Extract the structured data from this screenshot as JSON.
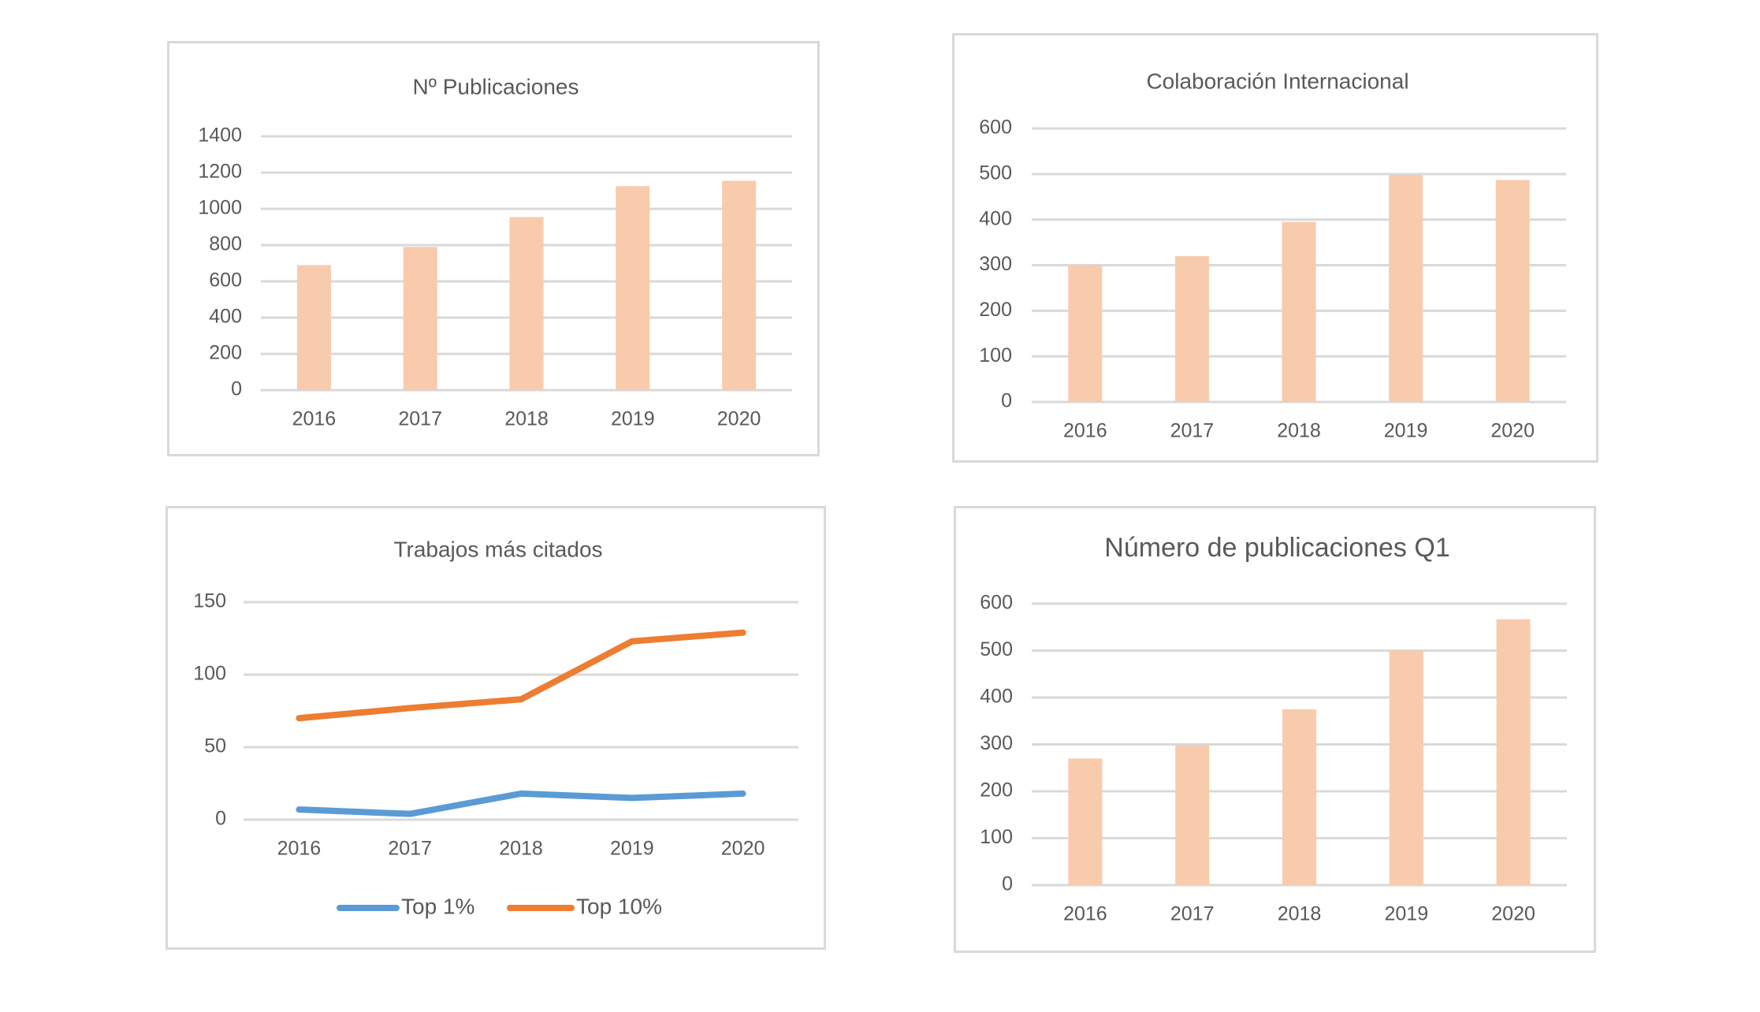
{
  "colors": {
    "bar": "#f8cbad",
    "grid": "#d9d9d9",
    "top1": "#5b9bd5",
    "top10": "#ed7d31",
    "text": "#595959"
  },
  "chart_data": [
    {
      "type": "bar",
      "title": "Nº Publicaciones",
      "categories": [
        "2016",
        "2017",
        "2018",
        "2019",
        "2020"
      ],
      "values": [
        690,
        790,
        955,
        1125,
        1155
      ],
      "ylim": [
        0,
        1400
      ],
      "yticks": [
        "0",
        "200",
        "400",
        "600",
        "800",
        "1000",
        "1200",
        "1400"
      ],
      "grid": true
    },
    {
      "type": "bar",
      "title": "Colaboración Internacional",
      "categories": [
        "2016",
        "2017",
        "2018",
        "2019",
        "2020"
      ],
      "values": [
        300,
        320,
        395,
        498,
        487
      ],
      "ylim": [
        0,
        600
      ],
      "yticks": [
        "0",
        "100",
        "200",
        "300",
        "400",
        "500",
        "600"
      ],
      "grid": true
    },
    {
      "type": "line",
      "title": "Trabajos más citados",
      "categories": [
        "2016",
        "2017",
        "2018",
        "2019",
        "2020"
      ],
      "series": [
        {
          "name": "Top 1%",
          "values": [
            7,
            4,
            18,
            15,
            18
          ]
        },
        {
          "name": "Top 10%",
          "values": [
            70,
            77,
            83,
            123,
            129
          ]
        }
      ],
      "ylim": [
        0,
        150
      ],
      "yticks": [
        "0",
        "50",
        "100",
        "150"
      ],
      "grid": true,
      "legend": "bottom"
    },
    {
      "type": "bar",
      "title": "Número de publicaciones Q1",
      "categories": [
        "2016",
        "2017",
        "2018",
        "2019",
        "2020"
      ],
      "values": [
        270,
        298,
        375,
        500,
        567
      ],
      "ylim": [
        0,
        600
      ],
      "yticks": [
        "0",
        "100",
        "200",
        "300",
        "400",
        "500",
        "600"
      ],
      "grid": true
    }
  ]
}
